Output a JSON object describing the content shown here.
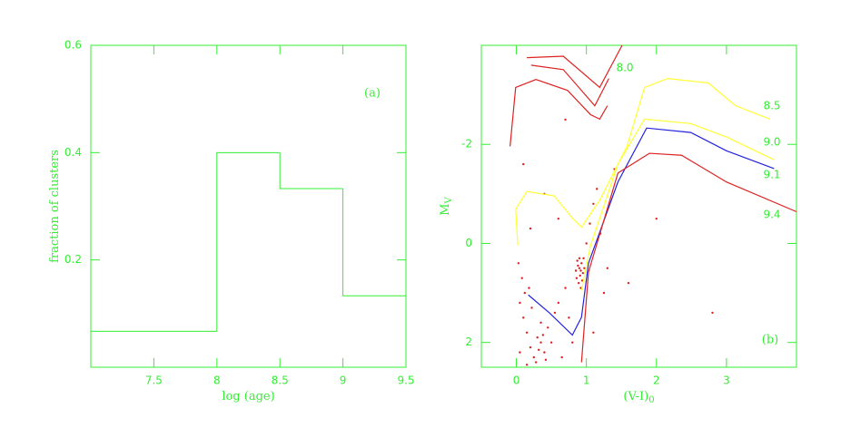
{
  "chart_data": [
    {
      "type": "histogram",
      "xlabel": "log (age)",
      "ylabel": "fraction of clusters",
      "annotation": "(a)",
      "color": "#33ee33",
      "bins": [
        7,
        8,
        8.5,
        9,
        9.5
      ],
      "values": [
        0.067,
        0.4,
        0.333,
        0.133
      ],
      "xlim": [
        7,
        9.5
      ],
      "xticks": [
        7.5,
        8,
        8.5,
        9,
        9.5
      ],
      "ylim": [
        0,
        0.6
      ],
      "yticks": [
        0.2,
        0.4,
        0.6
      ]
    },
    {
      "type": "line",
      "xlabel": "(V-I)",
      "xlabel_sub": "0",
      "ylabel": "M",
      "ylabel_sub": "V",
      "annotation": "(b)",
      "xlim": [
        -0.5,
        4
      ],
      "xticks": [
        0,
        1,
        2,
        3
      ],
      "ylim": [
        2.5,
        -4
      ],
      "yticks": [
        -2,
        0,
        2
      ],
      "scatter": {
        "color": "#dd2222",
        "x": [
          0.88,
          0.92,
          0.9,
          0.95,
          0.86,
          0.93,
          0.89,
          0.97,
          0.91,
          0.87,
          0.94,
          0.9,
          0.96,
          0.85,
          0.92,
          0.05,
          0.1,
          0.15,
          0.2,
          0.25,
          0.3,
          0.35,
          0.4,
          0.45,
          0.35,
          0.28,
          0.5,
          0.38,
          0.42,
          0.32,
          0.22,
          0.12,
          0.08,
          0.03,
          0.18,
          0.55,
          0.6,
          0.7,
          0.75,
          0.8,
          0.65,
          1.0,
          1.05,
          1.1,
          1.15,
          1.2,
          1.3,
          1.25,
          1.4,
          0.6,
          0.4,
          0.2,
          0.1,
          0.7,
          1.6,
          2.0,
          2.8,
          1.1,
          0.05,
          0.15
        ],
        "y": [
          0.45,
          0.55,
          0.3,
          0.6,
          0.7,
          0.4,
          0.8,
          0.5,
          0.65,
          0.35,
          0.75,
          0.5,
          0.3,
          0.55,
          0.9,
          1.2,
          1.5,
          1.8,
          2.1,
          2.3,
          1.9,
          2.0,
          2.2,
          1.7,
          1.6,
          2.4,
          2.0,
          1.85,
          2.35,
          2.15,
          1.3,
          1.0,
          0.7,
          0.4,
          0.9,
          1.4,
          1.2,
          0.9,
          1.5,
          2.0,
          2.3,
          0.0,
          -0.4,
          -0.8,
          -1.1,
          -0.2,
          0.5,
          1.0,
          -1.5,
          -0.5,
          -1.0,
          -0.3,
          -1.6,
          -2.5,
          0.8,
          -0.5,
          1.4,
          1.8,
          2.2,
          2.45
        ]
      },
      "series": [
        {
          "name": "8.0",
          "color": "#dd2222",
          "x": [
            0.15,
            0.67,
            1.19,
            1.51,
            null,
            0.21,
            0.67,
            1.12,
            1.32,
            null,
            -0.09,
            -0.01,
            0.28,
            0.73,
            1.06,
            1.19,
            1.3
          ],
          "y": [
            -3.75,
            -3.78,
            -3.15,
            -4.0,
            null,
            -3.6,
            -3.51,
            -2.78,
            -3.33,
            null,
            -1.96,
            -3.15,
            -3.31,
            -3.09,
            -2.6,
            -2.51,
            -2.78
          ]
        },
        {
          "name": "8.5",
          "color": "#ffff33",
          "x": [
            0.02,
            -0.01,
            0.15,
            0.54,
            0.8,
            0.93,
            1.19,
            1.58,
            1.83,
            2.16,
            2.74,
            3.13,
            3.62
          ],
          "y": [
            0.04,
            -0.69,
            -1.05,
            -0.96,
            -0.51,
            -0.33,
            -0.87,
            -1.96,
            -3.15,
            -3.33,
            -3.24,
            -2.78,
            -2.51
          ]
        },
        {
          "name": "9.0",
          "color": "#ffff33",
          "x": [
            0.93,
            1.06,
            1.45,
            1.83,
            2.49,
            3.0,
            3.68
          ],
          "y": [
            0.95,
            0.04,
            -1.6,
            -2.51,
            -2.42,
            -2.15,
            -1.69
          ]
        },
        {
          "name": "9.1",
          "color": "#2222dd",
          "x": [
            0.17,
            0.47,
            0.8,
            0.93,
            1.03,
            1.45,
            1.86,
            2.49,
            3.0,
            3.68
          ],
          "y": [
            1.04,
            1.4,
            1.85,
            1.49,
            0.4,
            -1.24,
            -2.33,
            -2.24,
            -1.87,
            -1.51
          ]
        },
        {
          "name": "9.4",
          "color": "#dd2222",
          "x": [
            0.93,
            1.03,
            1.45,
            1.9,
            2.36,
            3.0,
            4.0
          ],
          "y": [
            2.4,
            0.58,
            -1.42,
            -1.82,
            -1.78,
            -1.24,
            -0.64
          ]
        }
      ]
    }
  ]
}
